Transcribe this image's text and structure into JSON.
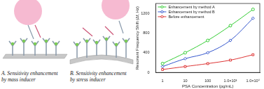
{
  "chart_data": {
    "type": "line",
    "x_label": "PSA Concentration (pg/mL)",
    "y_label": "Resonant Frequency Shift (Δf, Hz)",
    "x": [
      1,
      10,
      100,
      1000,
      10000
    ],
    "series": [
      {
        "name": "Enhancement by method A",
        "color": "#33cc33",
        "marker": "circle",
        "values": [
          180,
          400,
          650,
          950,
          1280
        ]
      },
      {
        "name": "Enhancement by method B",
        "color": "#3355cc",
        "marker": "diamond",
        "values": [
          120,
          280,
          400,
          650,
          1100
        ]
      },
      {
        "name": "Before enhancement",
        "color": "#dd3333",
        "marker": "square",
        "values": [
          60,
          120,
          180,
          250,
          360
        ]
      }
    ],
    "log": "x",
    "xlim": [
      0.5,
      20000
    ],
    "xticks": [
      1,
      10,
      100,
      {
        "value": 1000,
        "label": "1.0×10³"
      },
      {
        "value": 10000,
        "label": "1.0×10⁴"
      }
    ],
    "ylim": [
      0,
      1400
    ],
    "yticks": [
      0,
      400,
      800,
      1200
    ],
    "grid": false,
    "legend": "upper left"
  },
  "diagram": {
    "captions": [
      [
        "A. Sensitivity enhancement",
        "by mass inducer"
      ],
      [
        "B. Sensitivity enhancement",
        "by stress inducer"
      ]
    ]
  }
}
